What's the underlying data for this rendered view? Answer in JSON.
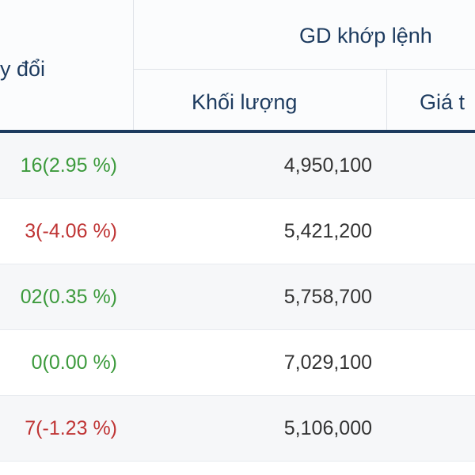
{
  "table": {
    "header": {
      "change": "y đổi",
      "group": "GD khớp lệnh",
      "volume": "Khối lượng",
      "price": "Giá t"
    },
    "rows": [
      {
        "change": "16(2.95 %)",
        "change_color": "#3c9a3c",
        "volume": "4,950,100"
      },
      {
        "change": "3(-4.06 %)",
        "change_color": "#bf3434",
        "volume": "5,421,200"
      },
      {
        "change": "02(0.35 %)",
        "change_color": "#3c9a3c",
        "volume": "5,758,700"
      },
      {
        "change": "0(0.00 %)",
        "change_color": "#3c9a3c",
        "volume": "7,029,100"
      },
      {
        "change": "7(-1.23 %)",
        "change_color": "#bf3434",
        "volume": "5,106,000"
      }
    ]
  }
}
